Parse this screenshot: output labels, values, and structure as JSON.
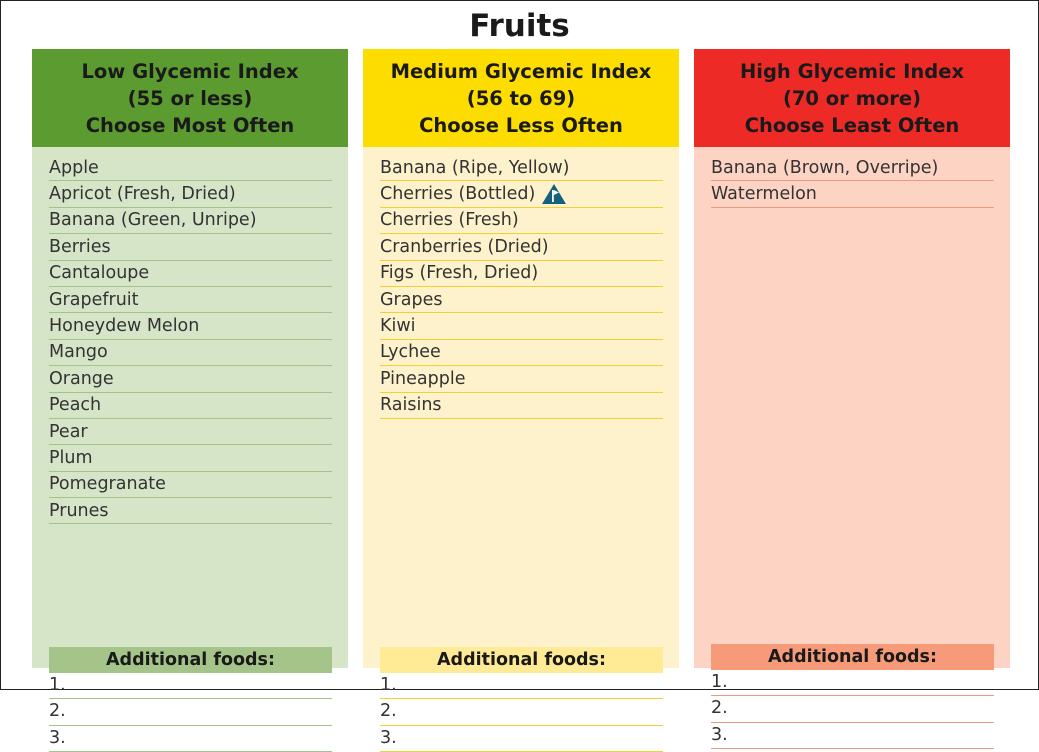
{
  "page": {
    "title": "Fruits"
  },
  "columns": [
    {
      "id": "low",
      "header": [
        "Low Glycemic Index",
        "(55 or less)",
        "Choose Most Often"
      ],
      "colors": {
        "header": "#5b9b30",
        "body": "#d6e5c8",
        "rule": "#a4c28b",
        "additional_bg": "#a5c48a"
      },
      "items": [
        {
          "text": "Apple"
        },
        {
          "text": "Apricot (Fresh, Dried)"
        },
        {
          "text": "Banana (Green, Unripe)"
        },
        {
          "text": "Berries"
        },
        {
          "text": "Cantaloupe"
        },
        {
          "text": "Grapefruit"
        },
        {
          "text": "Honeydew Melon"
        },
        {
          "text": "Mango"
        },
        {
          "text": "Orange"
        },
        {
          "text": "Peach"
        },
        {
          "text": "Pear"
        },
        {
          "text": "Plum"
        },
        {
          "text": "Pomegranate"
        },
        {
          "text": "Prunes"
        }
      ],
      "additional": {
        "title": "Additional foods:",
        "lines": [
          "1.",
          "2.",
          "3."
        ]
      }
    },
    {
      "id": "medium",
      "header": [
        "Medium Glycemic Index",
        "(56 to 69)",
        "Choose Less Often"
      ],
      "colors": {
        "header": "#fddc00",
        "body": "#fef2cc",
        "rule": "#f2cf33",
        "additional_bg": "#ffeb95"
      },
      "items": [
        {
          "text": "Banana (Ripe, Yellow)"
        },
        {
          "text": "Cherries (Bottled)",
          "icon": "warning-flag-icon"
        },
        {
          "text": "Cherries (Fresh)"
        },
        {
          "text": "Cranberries (Dried)"
        },
        {
          "text": "Figs (Fresh, Dried)"
        },
        {
          "text": "Grapes"
        },
        {
          "text": "Kiwi"
        },
        {
          "text": "Lychee"
        },
        {
          "text": "Pineapple"
        },
        {
          "text": "Raisins"
        }
      ],
      "additional": {
        "title": "Additional foods:",
        "lines": [
          "1.",
          "2.",
          "3."
        ]
      }
    },
    {
      "id": "high",
      "header": [
        "High Glycemic Index",
        "(70 or more)",
        "Choose Least Often"
      ],
      "colors": {
        "header": "#ee2a27",
        "body": "#fdd4c4",
        "rule": "#ec9b82",
        "additional_bg": "#f69a7a"
      },
      "items": [
        {
          "text": "Banana (Brown, Overripe)"
        },
        {
          "text": "Watermelon"
        }
      ],
      "additional": {
        "title": "Additional foods:",
        "lines": [
          "1.",
          "2.",
          "3."
        ]
      }
    }
  ],
  "icon_color": "#15607e"
}
